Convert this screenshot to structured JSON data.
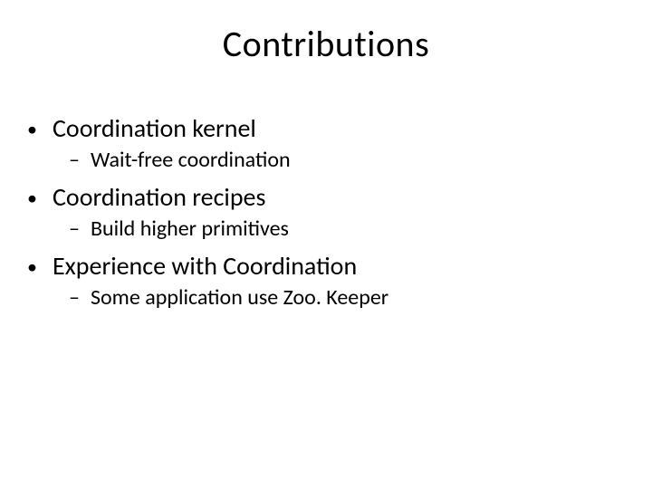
{
  "background_color": "#ffffff",
  "text_color": "#000000",
  "title": {
    "text": "Contributions",
    "fontsize": 40,
    "align": "center"
  },
  "bullets": {
    "level1_marker": "•",
    "level2_marker": "–",
    "level1_fontsize": 28,
    "level2_fontsize": 24,
    "items": [
      {
        "text": "Coordination kernel",
        "sub": [
          {
            "text": "Wait-free coordination"
          }
        ]
      },
      {
        "text": "Coordination recipes",
        "sub": [
          {
            "text": "Build higher primitives"
          }
        ]
      },
      {
        "text": "Experience with Coordination",
        "sub": [
          {
            "text": "Some application use Zoo. Keeper"
          }
        ]
      }
    ]
  }
}
